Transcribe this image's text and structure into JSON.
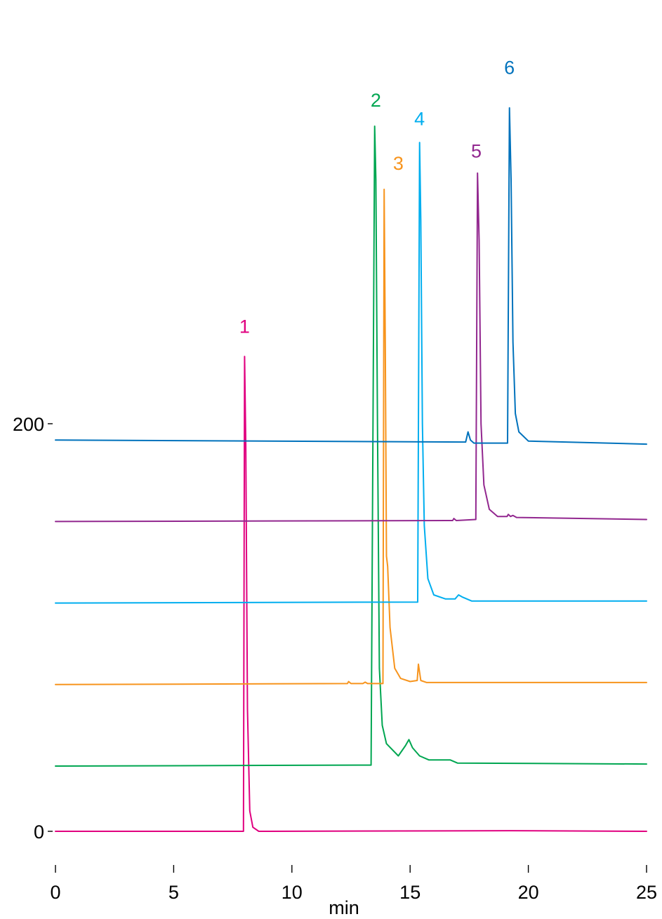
{
  "chart_data": {
    "type": "line",
    "title": "",
    "xlabel": "min",
    "ylabel": "",
    "xlim": [
      0,
      25
    ],
    "ylim": [
      -17,
      368
    ],
    "x_ticks": [
      {
        "value": 0,
        "label": "0"
      },
      {
        "value": 5,
        "label": "5"
      },
      {
        "value": 10,
        "label": "10"
      },
      {
        "value": 15,
        "label": "15"
      },
      {
        "value": 20,
        "label": "20"
      },
      {
        "value": 25,
        "label": "25"
      }
    ],
    "y_ticks": [
      {
        "value": 0,
        "label": "0"
      },
      {
        "value": 200,
        "label": "200"
      }
    ],
    "grid": false,
    "legend": "none",
    "series": [
      {
        "label": "1",
        "color": "#e0007f",
        "baseline": 0,
        "baseline_end": 0,
        "label_at": [
          8.0,
          248
        ],
        "points": [
          [
            0,
            0
          ],
          [
            7.95,
            0
          ],
          [
            8.0,
            233
          ],
          [
            8.05,
            190
          ],
          [
            8.12,
            60
          ],
          [
            8.22,
            10
          ],
          [
            8.35,
            2
          ],
          [
            8.6,
            0
          ],
          [
            19.2,
            0.3
          ],
          [
            25,
            0
          ]
        ]
      },
      {
        "label": "2",
        "color": "#00a651",
        "baseline": 32,
        "baseline_end": 33,
        "label_at": [
          13.55,
          359
        ],
        "points": [
          [
            0,
            32
          ],
          [
            13.35,
            32.5
          ],
          [
            13.5,
            346
          ],
          [
            13.55,
            320
          ],
          [
            13.62,
            200
          ],
          [
            13.7,
            80
          ],
          [
            13.82,
            52
          ],
          [
            14.0,
            43
          ],
          [
            14.5,
            37
          ],
          [
            14.8,
            42
          ],
          [
            14.95,
            45
          ],
          [
            15.1,
            41
          ],
          [
            15.4,
            37
          ],
          [
            15.8,
            35
          ],
          [
            16.7,
            35
          ],
          [
            17.0,
            33.5
          ],
          [
            25,
            33
          ]
        ]
      },
      {
        "label": "3",
        "color": "#f7941d",
        "baseline": 72,
        "baseline_end": 73,
        "label_at": [
          14.5,
          328
        ],
        "points": [
          [
            0,
            72
          ],
          [
            12.35,
            72.5
          ],
          [
            12.4,
            73.5
          ],
          [
            12.5,
            72.5
          ],
          [
            13.0,
            72.5
          ],
          [
            13.1,
            73.2
          ],
          [
            13.2,
            72.5
          ],
          [
            13.85,
            72.5
          ],
          [
            13.9,
            315
          ],
          [
            13.95,
            240
          ],
          [
            14.0,
            135
          ],
          [
            14.05,
            130
          ],
          [
            14.15,
            100
          ],
          [
            14.35,
            80
          ],
          [
            14.6,
            75
          ],
          [
            15.0,
            73.5
          ],
          [
            15.3,
            74
          ],
          [
            15.35,
            82
          ],
          [
            15.45,
            74
          ],
          [
            15.7,
            73
          ],
          [
            25,
            73
          ]
        ]
      },
      {
        "label": "4",
        "color": "#00aeef",
        "baseline": 112,
        "baseline_end": 113,
        "label_at": [
          15.4,
          350
        ],
        "points": [
          [
            0,
            112
          ],
          [
            15.32,
            112.5
          ],
          [
            15.4,
            338
          ],
          [
            15.45,
            300
          ],
          [
            15.52,
            200
          ],
          [
            15.6,
            150
          ],
          [
            15.75,
            124
          ],
          [
            16.0,
            116
          ],
          [
            16.5,
            114
          ],
          [
            16.9,
            114
          ],
          [
            17.05,
            116
          ],
          [
            17.2,
            115
          ],
          [
            17.6,
            113
          ],
          [
            25,
            113
          ]
        ]
      },
      {
        "label": "5",
        "color": "#92278f",
        "baseline": 152,
        "baseline_end": 153,
        "label_at": [
          17.8,
          334
        ],
        "points": [
          [
            0,
            152
          ],
          [
            16.8,
            152.5
          ],
          [
            16.85,
            153.5
          ],
          [
            16.95,
            152.5
          ],
          [
            17.78,
            153
          ],
          [
            17.85,
            323
          ],
          [
            17.92,
            290
          ],
          [
            18.0,
            200
          ],
          [
            18.12,
            170
          ],
          [
            18.35,
            158
          ],
          [
            18.7,
            154.5
          ],
          [
            19.1,
            154.5
          ],
          [
            19.15,
            155.5
          ],
          [
            19.25,
            154.5
          ],
          [
            19.35,
            155
          ],
          [
            19.5,
            154
          ],
          [
            25,
            153
          ]
        ]
      },
      {
        "label": "6",
        "color": "#0072bc",
        "baseline": 192,
        "baseline_end": 190,
        "label_at": [
          19.2,
          375
        ],
        "points": [
          [
            0,
            192
          ],
          [
            17.35,
            191
          ],
          [
            17.45,
            196
          ],
          [
            17.55,
            192
          ],
          [
            17.7,
            190.5
          ],
          [
            19.12,
            190.5
          ],
          [
            19.2,
            355
          ],
          [
            19.27,
            320
          ],
          [
            19.35,
            240
          ],
          [
            19.45,
            205
          ],
          [
            19.6,
            196
          ],
          [
            20.0,
            191.5
          ],
          [
            25,
            190
          ]
        ]
      }
    ]
  }
}
